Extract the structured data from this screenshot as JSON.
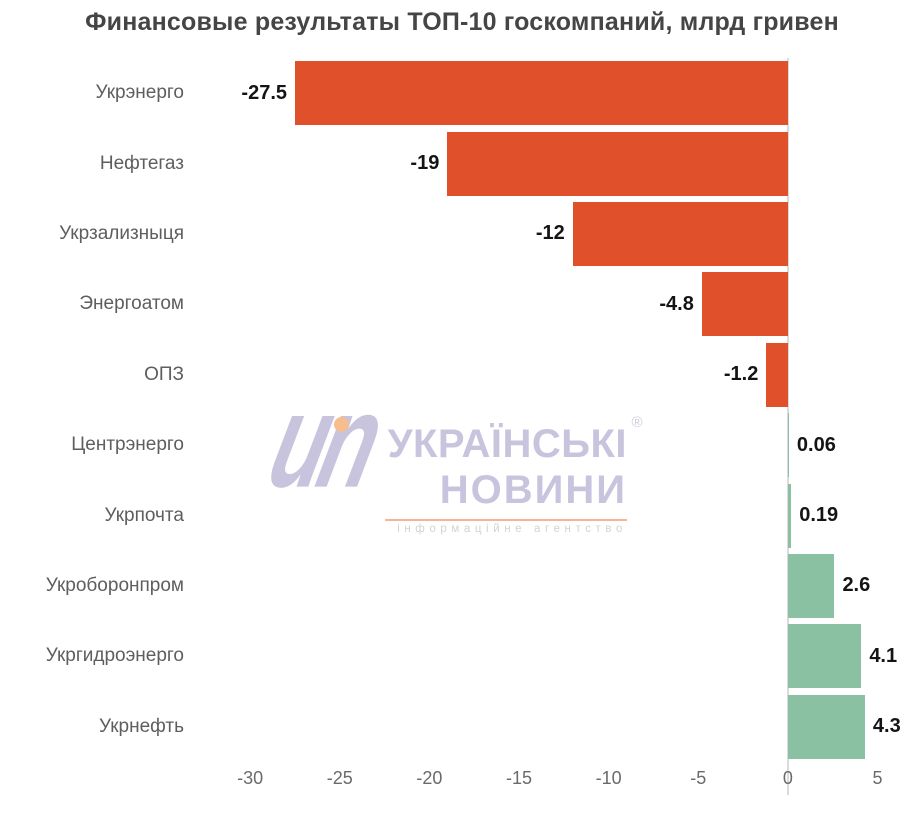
{
  "title": "Финансовые результаты ТОП-10 госкомпаний, млрд гривен",
  "chart_data": {
    "type": "bar",
    "orientation": "horizontal",
    "title": "Финансовые результаты ТОП-10 госкомпаний, млрд гривен",
    "categories": [
      "Укрэнерго",
      "Нефтегаз",
      "Укрзализныця",
      "Энергоатом",
      "ОПЗ",
      "Центрэнерго",
      "Укрпочта",
      "Укроборонпром",
      "Укргидроэнерго",
      "Укрнефть"
    ],
    "values": [
      -27.5,
      -19,
      -12,
      -4.8,
      -1.2,
      0.06,
      0.19,
      2.6,
      4.1,
      4.3
    ],
    "value_labels": [
      "-27.5",
      "-19",
      "-12",
      "-4.8",
      "-1.2",
      "0.06",
      "0.19",
      "2.6",
      "4.1",
      "4.3"
    ],
    "xticks": [
      -30,
      -25,
      -20,
      -15,
      -10,
      -5,
      0,
      5
    ],
    "xtick_labels": [
      "-30",
      "-25",
      "-20",
      "-15",
      "-10",
      "-5",
      "0",
      "5"
    ],
    "xlim": [
      -32.8,
      5.7
    ],
    "negative_color": "#e0502b",
    "positive_color": "#8ac1a3",
    "grid": false,
    "legend": "none",
    "background": "#ffffff",
    "unit": "млрд гривен"
  },
  "watermark": {
    "logo_text": "un",
    "line1": "УКРАЇНСЬКІ",
    "registered_mark": "®",
    "line2": "НОВИНИ",
    "tagline": "інформаційне агентство",
    "lavender": "#c8c4de",
    "orange": "#f6bd8e"
  }
}
